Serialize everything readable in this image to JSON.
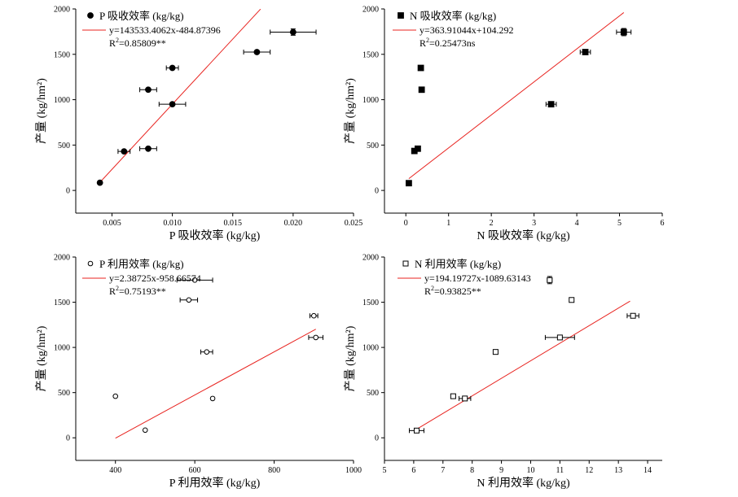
{
  "colors": {
    "fit_line": "#e8231f",
    "marker": "#000000",
    "axis": "#000000",
    "background": "#ffffff"
  },
  "chart_data": [
    {
      "type": "scatter",
      "marker": "filled-circle",
      "series_name": "P 吸收效率 (kg/kg)",
      "xlabel": "P 吸收效率 (kg/kg)",
      "ylabel": "产量 (kg/hm²)",
      "xlim": [
        0.002,
        0.025
      ],
      "ylim": [
        -250,
        2000
      ],
      "xticks": [
        0.005,
        0.01,
        0.015,
        0.02,
        0.025
      ],
      "xtick_labels": [
        "0.005",
        "0.010",
        "0.015",
        "0.020",
        "0.025"
      ],
      "yticks": [
        0,
        500,
        1000,
        1500,
        2000
      ],
      "ytick_labels": [
        "0",
        "500",
        "1000",
        "1500",
        "2000"
      ],
      "points": [
        {
          "x": 0.004,
          "y": 85,
          "xerr": 0
        },
        {
          "x": 0.006,
          "y": 430,
          "xerr": 0.0005
        },
        {
          "x": 0.008,
          "y": 460,
          "xerr": 0.0007
        },
        {
          "x": 0.008,
          "y": 1110,
          "xerr": 0.0007
        },
        {
          "x": 0.01,
          "y": 1350,
          "xerr": 0.0005
        },
        {
          "x": 0.01,
          "y": 950,
          "xerr": 0.0011
        },
        {
          "x": 0.017,
          "y": 1525,
          "xerr": 0.0011
        },
        {
          "x": 0.02,
          "y": 1745,
          "xerr": 0.0019,
          "yerr": 35
        }
      ],
      "fit": {
        "slope": 143533.4062,
        "intercept": -484.87396,
        "x_range": [
          0.004,
          0.0173
        ]
      },
      "equation": "y=143533.4062x-484.87396",
      "r2_prefix": "R",
      "r2_sup": "2",
      "r2_value": "=0.85809**"
    },
    {
      "type": "scatter",
      "marker": "filled-square",
      "series_name": "N 吸收效率 (kg/kg)",
      "xlabel": "N 吸收效率 (kg/kg)",
      "ylabel": "产量 (kg/hm²)",
      "xlim": [
        -0.5,
        6
      ],
      "ylim": [
        -250,
        2000
      ],
      "xticks": [
        0,
        1,
        2,
        3,
        4,
        5,
        6
      ],
      "xtick_labels": [
        "0",
        "1",
        "2",
        "3",
        "4",
        "5",
        "6"
      ],
      "yticks": [
        0,
        500,
        1000,
        1500,
        2000
      ],
      "ytick_labels": [
        "0",
        "500",
        "1000",
        "1500",
        "2000"
      ],
      "points": [
        {
          "x": 0.07,
          "y": 80,
          "xerr": 0
        },
        {
          "x": 0.2,
          "y": 435,
          "xerr": 0
        },
        {
          "x": 0.28,
          "y": 460,
          "xerr": 0
        },
        {
          "x": 0.35,
          "y": 1350,
          "xerr": 0
        },
        {
          "x": 0.37,
          "y": 1110,
          "xerr": 0
        },
        {
          "x": 3.4,
          "y": 950,
          "xerr": 0.12
        },
        {
          "x": 4.2,
          "y": 1525,
          "xerr": 0.12
        },
        {
          "x": 5.1,
          "y": 1745,
          "xerr": 0.17,
          "yerr": 40
        }
      ],
      "fit": {
        "slope": 363.91044,
        "intercept": 104.292,
        "x_range": [
          0.07,
          5.1
        ]
      },
      "equation": "y=363.91044x+104.292",
      "r2_prefix": "R",
      "r2_sup": "2",
      "r2_value": "=0.25473ns"
    },
    {
      "type": "scatter",
      "marker": "open-circle",
      "series_name": "P 利用效率 (kg/kg)",
      "xlabel": "P 利用效率 (kg/kg)",
      "ylabel": "产量 (kg/hm²)",
      "xlim": [
        300,
        1000
      ],
      "ylim": [
        -250,
        2000
      ],
      "xticks": [
        400,
        600,
        800,
        1000
      ],
      "xtick_labels": [
        "400",
        "600",
        "800",
        "1000"
      ],
      "yticks": [
        0,
        500,
        1000,
        1500,
        2000
      ],
      "ytick_labels": [
        "0",
        "500",
        "1000",
        "1500",
        "2000"
      ],
      "points": [
        {
          "x": 400,
          "y": 460,
          "xerr": 0
        },
        {
          "x": 475,
          "y": 85,
          "xerr": 0
        },
        {
          "x": 585,
          "y": 1525,
          "xerr": 22
        },
        {
          "x": 600,
          "y": 1745,
          "xerr": 45
        },
        {
          "x": 630,
          "y": 950,
          "xerr": 15
        },
        {
          "x": 645,
          "y": 435,
          "xerr": 0
        },
        {
          "x": 900,
          "y": 1350,
          "xerr": 10
        },
        {
          "x": 905,
          "y": 1110,
          "xerr": 18
        }
      ],
      "fit": {
        "slope": 2.38725,
        "intercept": -958.66574,
        "x_range": [
          400,
          905
        ]
      },
      "equation": "y=2.38725x-958.66574",
      "r2_prefix": "R",
      "r2_sup": "2",
      "r2_value": "=0.75193**"
    },
    {
      "type": "scatter",
      "marker": "open-square",
      "series_name": "N 利用效率 (kg/kg)",
      "xlabel": "N 利用效率 (kg/kg)",
      "ylabel": "产量 (kg/hm²)",
      "xlim": [
        5,
        14.5
      ],
      "ylim": [
        -250,
        2000
      ],
      "xticks": [
        5,
        6,
        7,
        8,
        9,
        10,
        11,
        12,
        13,
        14
      ],
      "xtick_labels": [
        "5",
        "6",
        "7",
        "8",
        "9",
        "10",
        "11",
        "12",
        "13",
        "14"
      ],
      "yticks": [
        0,
        500,
        1000,
        1500,
        2000
      ],
      "ytick_labels": [
        "0",
        "500",
        "1000",
        "1500",
        "2000"
      ],
      "points": [
        {
          "x": 6.1,
          "y": 80,
          "xerr": 0.25
        },
        {
          "x": 7.35,
          "y": 460,
          "xerr": 0.08
        },
        {
          "x": 7.75,
          "y": 435,
          "xerr": 0.2
        },
        {
          "x": 8.8,
          "y": 950,
          "xerr": 0.07
        },
        {
          "x": 10.65,
          "y": 1745,
          "xerr": 0.08,
          "yerr": 40
        },
        {
          "x": 11.0,
          "y": 1110,
          "xerr": 0.5
        },
        {
          "x": 11.4,
          "y": 1525,
          "xerr": 0.05
        },
        {
          "x": 13.5,
          "y": 1350,
          "xerr": 0.2
        }
      ],
      "fit": {
        "slope": 194.19727,
        "intercept": -1089.63143,
        "x_range": [
          6.1,
          13.4
        ]
      },
      "equation": "y=194.19727x-1089.63143",
      "r2_prefix": "R",
      "r2_sup": "2",
      "r2_value": "=0.93825**"
    }
  ]
}
